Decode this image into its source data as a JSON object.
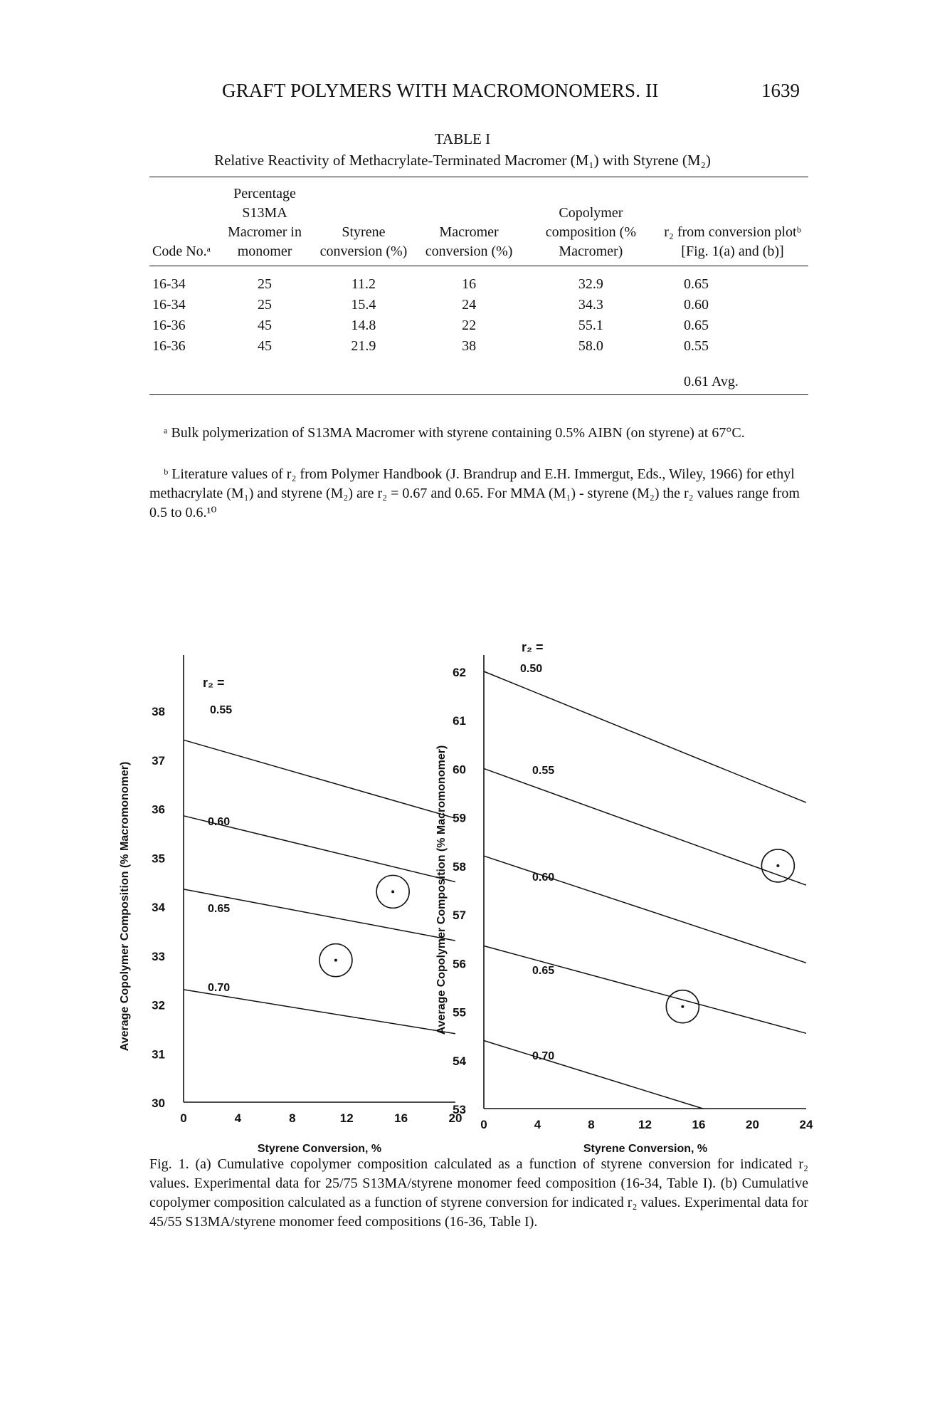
{
  "page": {
    "running_head": "GRAFT POLYMERS WITH MACROMONOMERS. II",
    "page_number": "1639"
  },
  "table": {
    "title": "TABLE I",
    "caption": "Relative Reactivity of Methacrylate-Terminated Macromer (M₁) with Styrene (M₂)",
    "headers": [
      "Code No.ᵃ",
      "Percentage S13MA Macromer in monomer",
      "Styrene conversion (%)",
      "Macromer conversion (%)",
      "Copolymer composition (% Macromer)",
      "r₂ from conversion plotᵇ [Fig. 1(a) and (b)]"
    ],
    "rows": [
      [
        "16-34",
        "25",
        "11.2",
        "16",
        "32.9",
        "0.65"
      ],
      [
        "16-34",
        "25",
        "15.4",
        "24",
        "34.3",
        "0.60"
      ],
      [
        "16-36",
        "45",
        "14.8",
        "22",
        "55.1",
        "0.65"
      ],
      [
        "16-36",
        "45",
        "21.9",
        "38",
        "58.0",
        "0.55"
      ]
    ],
    "average": "0.61 Avg."
  },
  "footnotes": {
    "a": "ᵃ Bulk polymerization of S13MA Macromer with styrene containing 0.5% AIBN (on styrene) at 67°C.",
    "b": "ᵇ Literature values of r₂ from Polymer Handbook (J. Brandrup and E.H. Immergut, Eds., Wiley, 1966) for ethyl methacrylate (M₁) and styrene (M₂) are r₂ = 0.67 and 0.65. For MMA (M₁) - styrene (M₂) the r₂ values range from 0.5 to 0.6.¹⁰"
  },
  "figure_caption": "Fig. 1. (a) Cumulative copolymer composition calculated as a function of styrene conversion for indicated r₂ values. Experimental data for 25/75 S13MA/styrene monomer feed composition (16-34, Table I). (b) Cumulative copolymer composition calculated as a function of styrene conversion for indicated r₂ values. Experimental data for 45/55 S13MA/styrene monomer feed compositions (16-36, Table I).",
  "chart_data": [
    {
      "type": "line",
      "xlabel": "Styrene Conversion, %",
      "ylabel": "Average Copolymer Composition (% Macromonomer)",
      "xlim": [
        0,
        20
      ],
      "ylim": [
        30,
        38
      ],
      "x_ticks": [
        "0",
        "4",
        "8",
        "12",
        "16",
        "20"
      ],
      "y_ticks": [
        "30",
        "31",
        "32",
        "33",
        "34",
        "35",
        "36",
        "37",
        "38"
      ],
      "series": [
        {
          "name": "r₂ = 0.55",
          "label": "0.55",
          "x": [
            0,
            20
          ],
          "y": [
            37.4,
            35.8
          ]
        },
        {
          "name": "0.60",
          "label": "0.60",
          "x": [
            0,
            20
          ],
          "y": [
            35.85,
            34.5
          ]
        },
        {
          "name": "0.65",
          "label": "0.65",
          "x": [
            0,
            20
          ],
          "y": [
            34.35,
            33.3
          ]
        },
        {
          "name": "0.70",
          "label": "0.70",
          "x": [
            0,
            20
          ],
          "y": [
            32.3,
            31.4
          ]
        }
      ],
      "series_label_prefix": "r₂ =",
      "experimental_points": [
        {
          "x": 11.2,
          "y": 32.9
        },
        {
          "x": 15.4,
          "y": 34.3
        }
      ]
    },
    {
      "type": "line",
      "xlabel": "Styrene Conversion, %",
      "ylabel": "Average Copolymer Composition (% Macromonomer)",
      "xlim": [
        0,
        24
      ],
      "ylim": [
        53,
        62
      ],
      "x_ticks": [
        "0",
        "4",
        "8",
        "12",
        "16",
        "20",
        "24"
      ],
      "y_ticks": [
        "53",
        "54",
        "55",
        "56",
        "57",
        "58",
        "59",
        "60",
        "61",
        "62"
      ],
      "series": [
        {
          "name": "r₂ = 0.50",
          "label": "0.50",
          "x": [
            0,
            24
          ],
          "y": [
            62.0,
            59.3
          ]
        },
        {
          "name": "0.55",
          "label": "0.55",
          "x": [
            0,
            24
          ],
          "y": [
            60.0,
            57.6
          ]
        },
        {
          "name": "0.60",
          "label": "0.60",
          "x": [
            0,
            24
          ],
          "y": [
            58.2,
            56.0
          ]
        },
        {
          "name": "0.65",
          "label": "0.65",
          "x": [
            0,
            24
          ],
          "y": [
            56.35,
            54.55
          ]
        },
        {
          "name": "0.70",
          "label": "0.70",
          "x": [
            0,
            16.3
          ],
          "y": [
            54.4,
            53.0
          ]
        }
      ],
      "series_label_prefix": "r₂ =",
      "experimental_points": [
        {
          "x": 14.8,
          "y": 55.1
        },
        {
          "x": 21.9,
          "y": 58.0
        }
      ]
    }
  ],
  "figure_panels": [
    {
      "xlabel": "Styrene Conversion, %",
      "ylabel": "Average Copolymer Composition (% Macromonomer)"
    },
    {
      "xlabel": "Styrene Conversion, %",
      "ylabel": "Average Copolymer Composition (% Macromonomer)"
    }
  ]
}
